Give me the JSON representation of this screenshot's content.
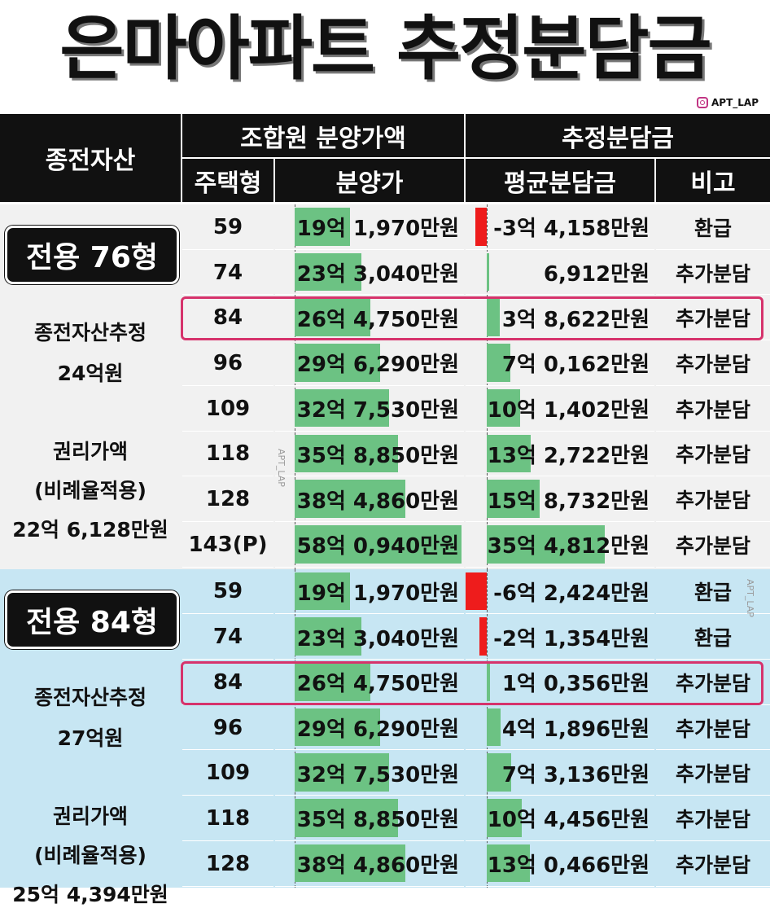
{
  "title": "은마아파트 추정분담금",
  "credit": {
    "icon": "instagram-icon",
    "handle": "APT_LAP"
  },
  "watermark": "APT_LAP",
  "headers": {
    "existing_asset": "종전자산",
    "member_price": "조합원 분양가액",
    "estimated_contribution": "추정분담금",
    "unit_type": "주택형",
    "sale_price": "분양가",
    "avg_contribution": "평균분담금",
    "note": "비고"
  },
  "colors": {
    "header_bg": "#111111",
    "section1_bg": "#f1f1f1",
    "section2_bg": "#c7e6f3",
    "positive_bar": "#6cc283",
    "negative_bar": "#ee1c1c",
    "highlight": "#d6336c"
  },
  "chart_data": {
    "type": "table",
    "sections": [
      {
        "badge": "전용 76형",
        "estimate_label": "종전자산추정",
        "estimate_value": "24억원",
        "rights_label": "권리가액",
        "rights_sub": "(비례율적용)",
        "rights_value": "22억 6,128만원",
        "highlight_type": "84",
        "rows": [
          {
            "type": "59",
            "price": "19억 1,970만원",
            "price_value": 191970,
            "contribution": "-3억 4,158만원",
            "contribution_value": -34158,
            "note": "환급"
          },
          {
            "type": "74",
            "price": "23억 3,040만원",
            "price_value": 233040,
            "contribution": "6,912만원",
            "contribution_value": 6912,
            "note": "추가분담"
          },
          {
            "type": "84",
            "price": "26억 4,750만원",
            "price_value": 264750,
            "contribution": "3억 8,622만원",
            "contribution_value": 38622,
            "note": "추가분담"
          },
          {
            "type": "96",
            "price": "29억 6,290만원",
            "price_value": 296290,
            "contribution": "7억 0,162만원",
            "contribution_value": 70162,
            "note": "추가분담"
          },
          {
            "type": "109",
            "price": "32억 7,530만원",
            "price_value": 327530,
            "contribution": "10억 1,402만원",
            "contribution_value": 101402,
            "note": "추가분담"
          },
          {
            "type": "118",
            "price": "35억 8,850만원",
            "price_value": 358850,
            "contribution": "13억 2,722만원",
            "contribution_value": 132722,
            "note": "추가분담"
          },
          {
            "type": "128",
            "price": "38억 4,860만원",
            "price_value": 384860,
            "contribution": "15억 8,732만원",
            "contribution_value": 158732,
            "note": "추가분담"
          },
          {
            "type": "143(P)",
            "price": "58억 0,940만원",
            "price_value": 580940,
            "contribution": "35억 4,812만원",
            "contribution_value": 354812,
            "note": "추가분담"
          }
        ]
      },
      {
        "badge": "전용 84형",
        "estimate_label": "종전자산추정",
        "estimate_value": "27억원",
        "rights_label": "권리가액",
        "rights_sub": "(비례율적용)",
        "rights_value": "25억 4,394만원",
        "highlight_type": "84",
        "rows": [
          {
            "type": "59",
            "price": "19억 1,970만원",
            "price_value": 191970,
            "contribution": "-6억 2,424만원",
            "contribution_value": -62424,
            "note": "환급"
          },
          {
            "type": "74",
            "price": "23억 3,040만원",
            "price_value": 233040,
            "contribution": "-2억 1,354만원",
            "contribution_value": -21354,
            "note": "환급"
          },
          {
            "type": "84",
            "price": "26억 4,750만원",
            "price_value": 264750,
            "contribution": "1억 0,356만원",
            "contribution_value": 10356,
            "note": "추가분담"
          },
          {
            "type": "96",
            "price": "29억 6,290만원",
            "price_value": 296290,
            "contribution": "4억 1,896만원",
            "contribution_value": 41896,
            "note": "추가분담"
          },
          {
            "type": "109",
            "price": "32억 7,530만원",
            "price_value": 327530,
            "contribution": "7억 3,136만원",
            "contribution_value": 73136,
            "note": "추가분담"
          },
          {
            "type": "118",
            "price": "35억 8,850만원",
            "price_value": 358850,
            "contribution": "10억 4,456만원",
            "contribution_value": 104456,
            "note": "추가분담"
          },
          {
            "type": "128",
            "price": "38억 4,860만원",
            "price_value": 384860,
            "contribution": "13억 0,466만원",
            "contribution_value": 130466,
            "note": "추가분담"
          }
        ]
      }
    ]
  }
}
